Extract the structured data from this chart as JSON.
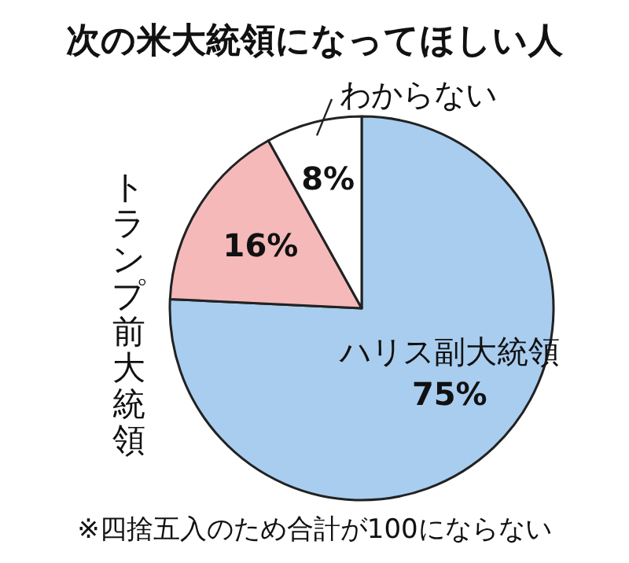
{
  "chart_data": {
    "type": "pie",
    "title": "次の米大統領になってほしい人",
    "categories": [
      "ハリス副大統領",
      "トランプ前大統領",
      "わからない"
    ],
    "values": [
      75,
      16,
      8
    ],
    "colors": [
      "#a8cdef",
      "#f5b9b9",
      "#ffffff"
    ],
    "value_labels": [
      "75%",
      "16%",
      "8%"
    ],
    "annotations": [
      "※四捨五入のため合計が100にならない"
    ]
  }
}
